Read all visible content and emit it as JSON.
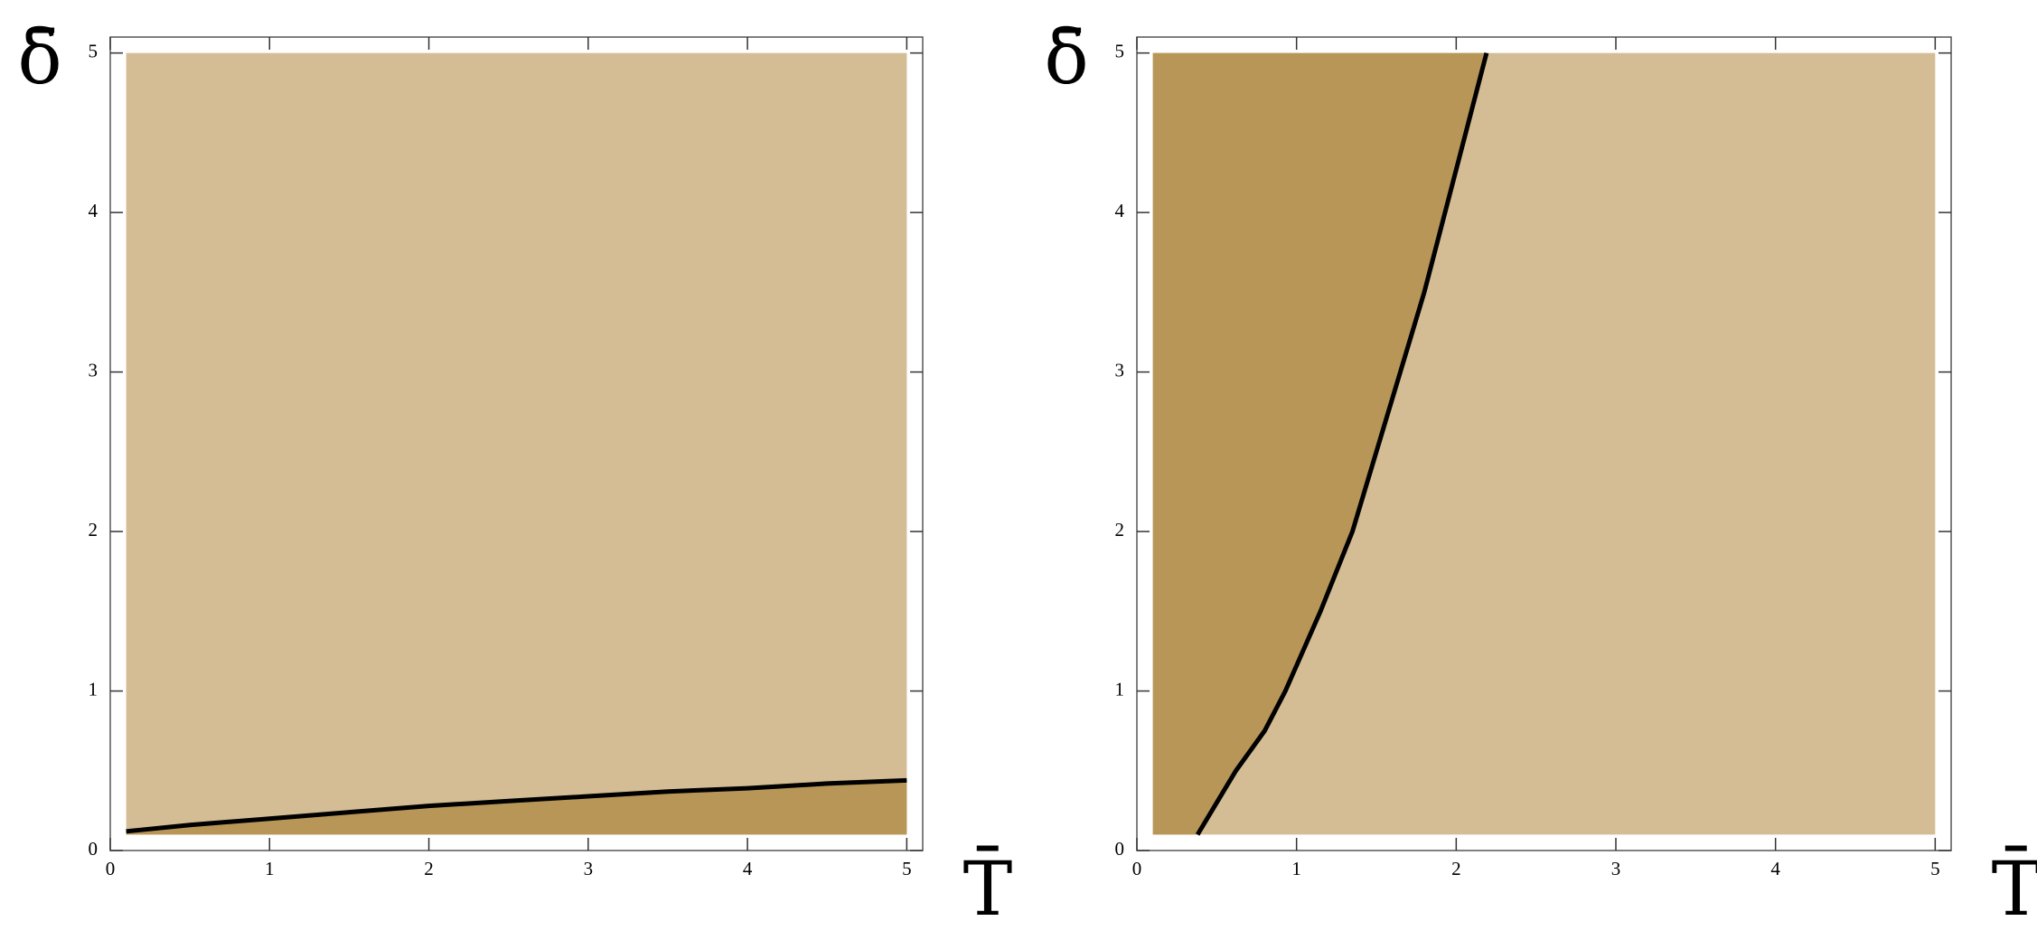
{
  "chart_data": [
    {
      "type": "region",
      "x_label": "T̄",
      "y_label": "δ̄",
      "x": [
        0.1,
        0.5,
        1,
        1.5,
        2,
        2.5,
        3,
        3.5,
        4,
        4.5,
        5
      ],
      "values": [
        0.12,
        0.16,
        0.2,
        0.24,
        0.28,
        0.31,
        0.34,
        0.37,
        0.39,
        0.42,
        0.44
      ],
      "color": "#000000",
      "domain": {
        "x": [
          0.1,
          5
        ],
        "y": [
          0.1,
          5
        ]
      },
      "dark_side": "below",
      "dark_color": "#b89658",
      "light_color": "#d4bd94",
      "xlim": [
        0,
        5.1
      ],
      "ylim": [
        0,
        5.1
      ],
      "xticks": [
        0,
        1,
        2,
        3,
        4,
        5
      ],
      "yticks": [
        0,
        1,
        2,
        3,
        4,
        5
      ]
    },
    {
      "type": "region",
      "x_label": "T̄",
      "y_label": "δ̄",
      "x": [
        0.38,
        0.5,
        0.62,
        0.8,
        0.93,
        1.15,
        1.35,
        1.5,
        1.65,
        1.8,
        1.93,
        2.06,
        2.19
      ],
      "values": [
        0.1,
        0.3,
        0.5,
        0.75,
        1,
        1.5,
        2,
        2.5,
        3,
        3.5,
        4,
        4.5,
        5
      ],
      "color": "#000000",
      "domain": {
        "x": [
          0.1,
          5
        ],
        "y": [
          0.1,
          5
        ]
      },
      "dark_side": "left",
      "dark_color": "#b89658",
      "light_color": "#d4bd94",
      "xlim": [
        0,
        5.1
      ],
      "ylim": [
        0,
        5.1
      ],
      "xticks": [
        0,
        1,
        2,
        3,
        4,
        5
      ],
      "yticks": [
        0,
        1,
        2,
        3,
        4,
        5
      ]
    }
  ]
}
